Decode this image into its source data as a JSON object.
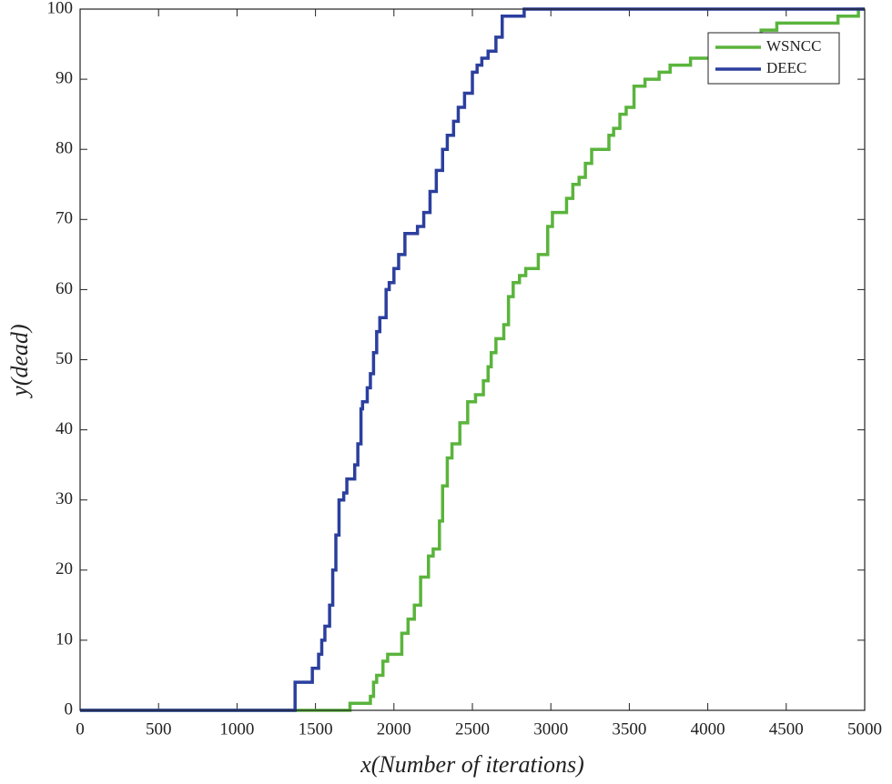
{
  "chart_data": {
    "type": "line",
    "step": "post",
    "xlabel": "x(Number of iterations)",
    "ylabel": "y(dead)",
    "xlim": [
      0,
      5000
    ],
    "ylim": [
      0,
      100
    ],
    "xticks": [
      0,
      500,
      1000,
      1500,
      2000,
      2500,
      3000,
      3500,
      4000,
      4500,
      5000
    ],
    "yticks": [
      0,
      10,
      20,
      30,
      40,
      50,
      60,
      70,
      80,
      90,
      100
    ],
    "legend": "upper right",
    "series": [
      {
        "name": "WSNCC",
        "color": "#5ab43c",
        "x": [
          0,
          1720,
          1850,
          1870,
          1890,
          1930,
          1960,
          2050,
          2090,
          2130,
          2170,
          2220,
          2250,
          2290,
          2310,
          2340,
          2370,
          2420,
          2470,
          2520,
          2570,
          2600,
          2620,
          2650,
          2700,
          2730,
          2760,
          2800,
          2840,
          2920,
          2980,
          3010,
          3100,
          3140,
          3180,
          3220,
          3260,
          3370,
          3400,
          3440,
          3480,
          3530,
          3600,
          3690,
          3760,
          3890,
          4010,
          4340,
          4440,
          4830,
          4960,
          5000
        ],
        "values": [
          0,
          1,
          2,
          4,
          5,
          7,
          8,
          11,
          13,
          15,
          19,
          22,
          23,
          27,
          32,
          36,
          38,
          41,
          44,
          45,
          47,
          49,
          51,
          53,
          55,
          59,
          61,
          62,
          63,
          65,
          69,
          71,
          73,
          75,
          76,
          78,
          80,
          82,
          83,
          85,
          86,
          89,
          90,
          91,
          92,
          93,
          95,
          97,
          98,
          99,
          100,
          100
        ]
      },
      {
        "name": "DEEC",
        "color": "#2b3f9e",
        "x": [
          0,
          1370,
          1480,
          1520,
          1540,
          1560,
          1590,
          1610,
          1630,
          1650,
          1680,
          1700,
          1750,
          1770,
          1790,
          1800,
          1830,
          1850,
          1870,
          1890,
          1910,
          1950,
          1970,
          2000,
          2030,
          2070,
          2150,
          2190,
          2230,
          2270,
          2310,
          2340,
          2380,
          2410,
          2450,
          2500,
          2530,
          2560,
          2600,
          2650,
          2690,
          2830,
          5000
        ],
        "values": [
          0,
          4,
          6,
          8,
          10,
          12,
          15,
          20,
          25,
          30,
          31,
          33,
          35,
          38,
          43,
          44,
          46,
          48,
          51,
          54,
          56,
          60,
          61,
          63,
          65,
          68,
          69,
          71,
          74,
          77,
          80,
          82,
          84,
          86,
          88,
          91,
          92,
          93,
          94,
          96,
          99,
          100,
          100
        ]
      }
    ]
  }
}
